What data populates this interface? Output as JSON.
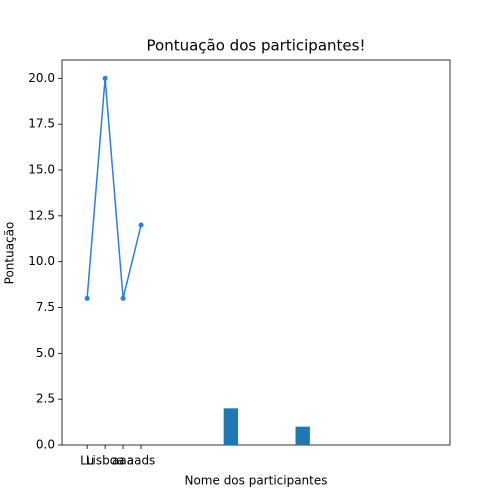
{
  "chart_data": {
    "type": "line",
    "title": "Pontuação dos participantes!",
    "x_label": "Nome dos participantes",
    "y_label": "Pontuação",
    "categories": [
      "Lu",
      "Lisboa",
      "aaa",
      "aads"
    ],
    "values": [
      8,
      20,
      8,
      12
    ],
    "color": "#2a7fe0",
    "bars": {
      "x": [
        8,
        12
      ],
      "values": [
        2,
        1
      ],
      "color": "#1f77b4"
    },
    "xlim": [
      -1.4,
      20.2
    ],
    "ylim": [
      0,
      21
    ],
    "yticks": [
      {
        "value": 0,
        "label": "0.0"
      },
      {
        "value": 2.5,
        "label": "2.5"
      },
      {
        "value": 5,
        "label": "5.0"
      },
      {
        "value": 7.5,
        "label": "7.5"
      },
      {
        "value": 10,
        "label": "10.0"
      },
      {
        "value": 12.5,
        "label": "12.5"
      },
      {
        "value": 15,
        "label": "15.0"
      },
      {
        "value": 17.5,
        "label": "17.5"
      },
      {
        "value": 20,
        "label": "20.0"
      }
    ],
    "grid": false
  }
}
